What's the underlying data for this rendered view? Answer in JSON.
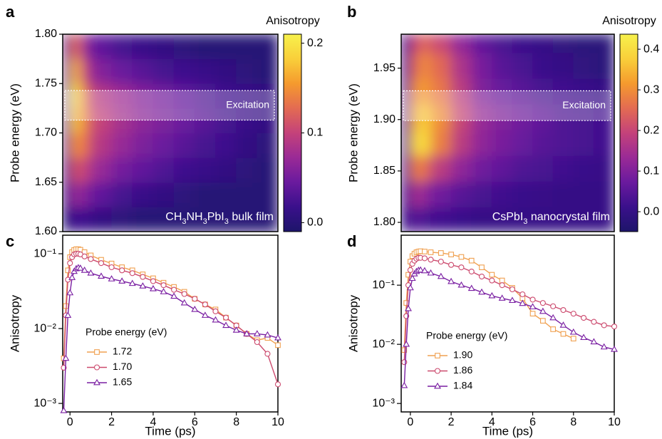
{
  "chart_data": [
    {
      "type": "heatmap",
      "panel_label": "a",
      "ylabel": "Probe energy (eV)",
      "colorbar_label": "Anisotropy",
      "xlim": [
        -0.35,
        10
      ],
      "ylim": [
        1.6,
        1.8
      ],
      "yticks": [
        {
          "value": 1.6,
          "label": "1.60"
        },
        1.65,
        {
          "value": 1.7,
          "label": "1.70"
        },
        1.75,
        {
          "value": 1.8,
          "label": "1.80"
        }
      ],
      "clim": [
        -0.01,
        0.21
      ],
      "cticks": [
        {
          "value": 0,
          "label": "0.0"
        },
        0.1,
        0.2
      ],
      "colormap": [
        "#1d156a",
        "#3a108b",
        "#6a1a9e",
        "#9a2a96",
        "#c4427a",
        "#e36b52",
        "#f59a2e",
        "#f9cf3a",
        "#f7f24c"
      ],
      "x_edges": [
        -0.35,
        0,
        0.5,
        1,
        2,
        3,
        4,
        5,
        6,
        7,
        8,
        9,
        10
      ],
      "y_edges": [
        1.6,
        1.625,
        1.65,
        1.675,
        1.7,
        1.725,
        1.75,
        1.775,
        1.8
      ],
      "z": [
        [
          0.0,
          0.02,
          0.02,
          0.01,
          0.005,
          0,
          0,
          0,
          0,
          0,
          0,
          0
        ],
        [
          0.01,
          0.07,
          0.06,
          0.04,
          0.025,
          0.015,
          0.01,
          0.005,
          0,
          0,
          0,
          0
        ],
        [
          0.02,
          0.11,
          0.1,
          0.07,
          0.05,
          0.04,
          0.03,
          0.02,
          0.015,
          0.01,
          0.005,
          0
        ],
        [
          0.03,
          0.15,
          0.13,
          0.09,
          0.07,
          0.055,
          0.045,
          0.035,
          0.025,
          0.02,
          0.01,
          0.005
        ],
        [
          0.04,
          0.18,
          0.14,
          0.1,
          0.08,
          0.065,
          0.055,
          0.045,
          0.035,
          0.025,
          0.015,
          0.01
        ],
        [
          0.05,
          0.2,
          0.13,
          0.09,
          0.075,
          0.06,
          0.05,
          0.04,
          0.03,
          0.02,
          0.015,
          0.01
        ],
        [
          0.04,
          0.17,
          0.1,
          0.06,
          0.045,
          0.035,
          0.025,
          0.02,
          0.015,
          0.01,
          0.005,
          0
        ],
        [
          0.03,
          0.13,
          0.07,
          0.04,
          0.025,
          0.015,
          0.01,
          0.005,
          0,
          0,
          0,
          0
        ]
      ],
      "excitation": {
        "label": "Excitation",
        "range": [
          1.713,
          1.743
        ]
      },
      "annotation_parts": [
        "CH",
        "3",
        "NH",
        "3",
        "PbI",
        "3",
        " bulk film"
      ]
    },
    {
      "type": "heatmap",
      "panel_label": "b",
      "ylabel": "Probe energy (eV)",
      "colorbar_label": "Anisotropy",
      "xlim": [
        -0.45,
        10
      ],
      "ylim": [
        1.791,
        1.983
      ],
      "yticks": [
        {
          "value": 1.8,
          "label": "1.80"
        },
        1.85,
        {
          "value": 1.9,
          "label": "1.90"
        },
        1.95
      ],
      "clim": [
        -0.049,
        0.437
      ],
      "cticks": [
        {
          "value": 0,
          "label": "0.0"
        },
        0.1,
        0.2,
        0.3,
        0.4
      ],
      "colormap": [
        "#1d156a",
        "#3a108b",
        "#6a1a9e",
        "#9a2a96",
        "#c4427a",
        "#e36b52",
        "#f59a2e",
        "#f9cf3a",
        "#f7f24c"
      ],
      "x_edges": [
        -0.45,
        0,
        0.5,
        1,
        2,
        3,
        4,
        5,
        6,
        7,
        8,
        9,
        10
      ],
      "y_edges": [
        1.791,
        1.815,
        1.84,
        1.865,
        1.89,
        1.915,
        1.94,
        1.965,
        1.983
      ],
      "z": [
        [
          0,
          0.05,
          0.03,
          0.02,
          0.01,
          0,
          0,
          0,
          0,
          0,
          0,
          0
        ],
        [
          0.02,
          0.15,
          0.12,
          0.08,
          0.05,
          0.03,
          0.02,
          0.01,
          0.005,
          0,
          0,
          0
        ],
        [
          0.04,
          0.28,
          0.26,
          0.18,
          0.12,
          0.08,
          0.06,
          0.04,
          0.03,
          0.02,
          0.01,
          0.005
        ],
        [
          0.05,
          0.38,
          0.4,
          0.28,
          0.18,
          0.12,
          0.09,
          0.07,
          0.05,
          0.04,
          0.03,
          0.02
        ],
        [
          0.05,
          0.34,
          0.38,
          0.3,
          0.2,
          0.13,
          0.1,
          0.08,
          0.06,
          0.04,
          0.03,
          0.02
        ],
        [
          0.04,
          0.3,
          0.32,
          0.27,
          0.18,
          0.1,
          0.07,
          0.05,
          0.03,
          0.02,
          0.01,
          0.0
        ],
        [
          0.03,
          0.25,
          0.3,
          0.25,
          0.16,
          0.09,
          0.05,
          0.03,
          0.01,
          0,
          -0.01,
          -0.02
        ],
        [
          0.02,
          0.2,
          0.25,
          0.2,
          0.12,
          0.06,
          0.03,
          0.01,
          0,
          -0.01,
          -0.02,
          -0.02
        ]
      ],
      "excitation": {
        "label": "Excitation",
        "range": [
          1.899,
          1.928
        ]
      },
      "annotation_parts": [
        "CsPbI",
        "3",
        " nanocrystal film"
      ]
    },
    {
      "type": "line",
      "panel_label": "c",
      "xlabel": "Time (ps)",
      "ylabel": "Anisotropy",
      "yscale": "log",
      "xlim": [
        -0.35,
        10
      ],
      "ylim": [
        0.00077,
        0.177
      ],
      "xticks": [
        0,
        2,
        4,
        6,
        8,
        10
      ],
      "yticks": [
        {
          "value": 0.001,
          "label": "10⁻³"
        },
        {
          "value": 0.01,
          "label": "10⁻²"
        },
        {
          "value": 0.1,
          "label": "10⁻¹"
        }
      ],
      "legend_title": "Probe energy (eV)",
      "x": [
        -0.3,
        -0.2,
        -0.1,
        0,
        0.1,
        0.2,
        0.3,
        0.4,
        0.5,
        0.7,
        1,
        1.5,
        2,
        2.5,
        3,
        3.5,
        4,
        4.5,
        5,
        5.5,
        6,
        6.5,
        7,
        7.5,
        8,
        8.5,
        9,
        9.5,
        10
      ],
      "series": [
        {
          "name": "1.72",
          "color": "#f0a050",
          "marker": "square",
          "values": [
            0.004,
            0.02,
            0.06,
            0.09,
            0.105,
            0.112,
            0.115,
            0.115,
            0.113,
            0.105,
            0.095,
            0.083,
            0.074,
            0.066,
            0.06,
            0.053,
            0.047,
            0.041,
            0.036,
            0.031,
            0.025,
            0.021,
            0.018,
            0.014,
            0.011,
            0.0085,
            0.007,
            0.0075,
            0.006
          ]
        },
        {
          "name": "1.70",
          "color": "#cc4a6e",
          "marker": "circle",
          "values": [
            0.003,
            0.015,
            0.045,
            0.075,
            0.09,
            0.098,
            0.1,
            0.1,
            0.098,
            0.092,
            0.085,
            0.075,
            0.066,
            0.06,
            0.055,
            0.049,
            0.043,
            0.038,
            0.033,
            0.029,
            0.025,
            0.021,
            0.017,
            0.014,
            0.011,
            0.0085,
            0.0066,
            0.0046,
            0.0018
          ]
        },
        {
          "name": "1.65",
          "color": "#7a1fa2",
          "marker": "triangle",
          "values": [
            0.0008,
            0.004,
            0.015,
            0.03,
            0.048,
            0.058,
            0.063,
            0.065,
            0.064,
            0.06,
            0.055,
            0.05,
            0.046,
            0.043,
            0.04,
            0.037,
            0.034,
            0.031,
            0.027,
            0.022,
            0.018,
            0.015,
            0.013,
            0.011,
            0.0095,
            0.0085,
            0.0085,
            0.0082,
            0.0075
          ]
        }
      ]
    },
    {
      "type": "line",
      "panel_label": "d",
      "xlabel": "Time (ps)",
      "ylabel": "Anisotropy",
      "yscale": "log",
      "xlim": [
        -0.45,
        10
      ],
      "ylim": [
        0.00072,
        0.7
      ],
      "xticks": [
        0,
        2,
        4,
        6,
        8,
        10
      ],
      "yticks": [
        {
          "value": 0.001,
          "label": "10⁻³"
        },
        {
          "value": 0.01,
          "label": "10⁻²"
        },
        {
          "value": 0.1,
          "label": "10⁻¹"
        }
      ],
      "legend_title": "Probe energy (eV)",
      "x": [
        -0.3,
        -0.2,
        -0.1,
        0,
        0.1,
        0.2,
        0.3,
        0.4,
        0.5,
        0.7,
        1,
        1.5,
        2,
        2.5,
        3,
        3.5,
        4,
        4.5,
        5,
        5.5,
        6,
        6.5,
        7,
        7.5,
        8,
        8.5,
        9,
        9.5,
        10
      ],
      "series": [
        {
          "name": "1.90",
          "color": "#f0a050",
          "marker": "square",
          "values": [
            0.008,
            0.05,
            0.15,
            0.25,
            0.31,
            0.34,
            0.36,
            0.37,
            0.375,
            0.37,
            0.36,
            0.35,
            0.33,
            0.3,
            0.26,
            0.2,
            0.15,
            0.12,
            0.09,
            0.06,
            0.033,
            0.025,
            0.018,
            0.015,
            0.0125,
            null,
            null,
            null,
            null
          ]
        },
        {
          "name": "1.86",
          "color": "#cc4a6e",
          "marker": "circle",
          "values": [
            0.005,
            0.03,
            0.1,
            0.18,
            0.23,
            0.26,
            0.28,
            0.29,
            0.29,
            0.285,
            0.27,
            0.25,
            0.22,
            0.2,
            0.17,
            0.14,
            0.12,
            0.1,
            0.085,
            0.07,
            0.057,
            0.05,
            0.044,
            0.038,
            0.033,
            0.028,
            0.024,
            0.021,
            0.02
          ]
        },
        {
          "name": "1.84",
          "color": "#7a1fa2",
          "marker": "triangle",
          "values": [
            0.002,
            0.01,
            0.04,
            0.09,
            0.13,
            0.155,
            0.17,
            0.178,
            0.18,
            0.175,
            0.16,
            0.14,
            0.115,
            0.1,
            0.088,
            0.076,
            0.066,
            0.06,
            0.055,
            0.049,
            0.043,
            0.036,
            0.028,
            0.021,
            0.016,
            0.013,
            0.011,
            0.009,
            0.0082
          ]
        }
      ]
    }
  ]
}
